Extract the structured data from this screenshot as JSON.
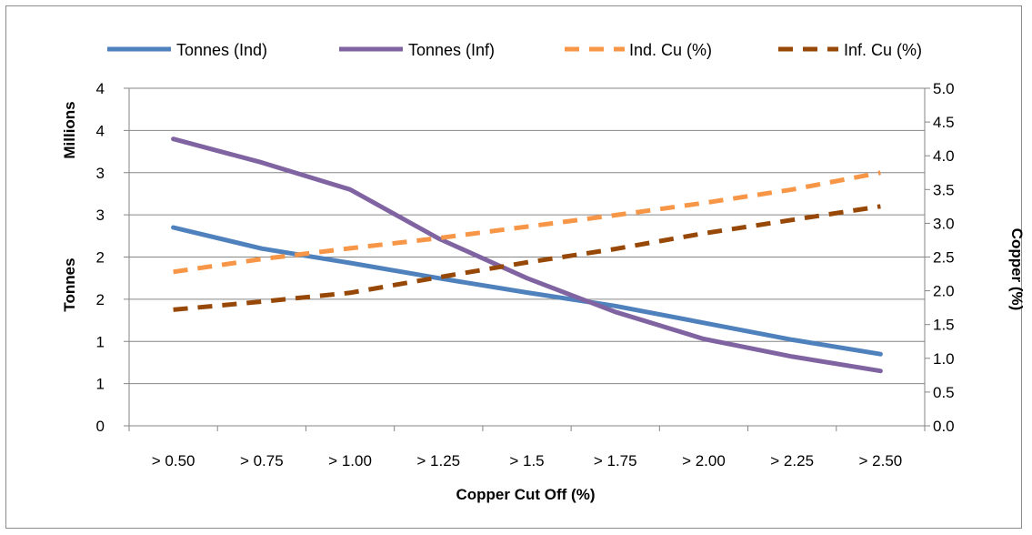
{
  "chart_data": {
    "type": "line",
    "title": "",
    "xlabel": "Copper Cut Off (%)",
    "ylabel_left": "Tonnes",
    "ylabel_left_units": "Millions",
    "ylabel_right": "Copper (%)",
    "categories": [
      "> 0.50",
      "> 0.75",
      "> 1.00",
      "> 1.25",
      "> 1.5",
      "> 1.75",
      "> 2.00",
      "> 2.25",
      "> 2.50"
    ],
    "left_axis": {
      "ylim": [
        0,
        4
      ],
      "tick_labels": [
        "0",
        "1",
        "1",
        "2",
        "2",
        "3",
        "3",
        "4",
        "4"
      ]
    },
    "right_axis": {
      "ylim": [
        0,
        5
      ],
      "tick_labels": [
        "0.0",
        "0.5",
        "1.0",
        "1.5",
        "2.0",
        "2.5",
        "3.0",
        "3.5",
        "4.0",
        "4.5",
        "5.0"
      ]
    },
    "grid": true,
    "legend_position": "top",
    "series": [
      {
        "name": "Tonnes (Ind)",
        "axis": "left",
        "style": "solid",
        "color": "#4f81bd",
        "values": [
          2.35,
          2.1,
          1.93,
          1.75,
          1.58,
          1.42,
          1.22,
          1.02,
          0.85
        ]
      },
      {
        "name": "Tonnes (Inf)",
        "axis": "left",
        "style": "solid",
        "color": "#8064a2",
        "values": [
          3.4,
          3.12,
          2.8,
          2.22,
          1.75,
          1.35,
          1.03,
          0.82,
          0.65
        ]
      },
      {
        "name": "Ind. Cu (%)",
        "axis": "right",
        "style": "dashed",
        "color": "#f79646",
        "values": [
          2.28,
          2.47,
          2.63,
          2.78,
          2.95,
          3.12,
          3.3,
          3.5,
          3.75
        ]
      },
      {
        "name": "Inf. Cu (%)",
        "axis": "right",
        "style": "dashed",
        "color": "#974806",
        "values": [
          1.72,
          1.84,
          1.97,
          2.2,
          2.42,
          2.62,
          2.85,
          3.05,
          3.25
        ]
      }
    ]
  }
}
